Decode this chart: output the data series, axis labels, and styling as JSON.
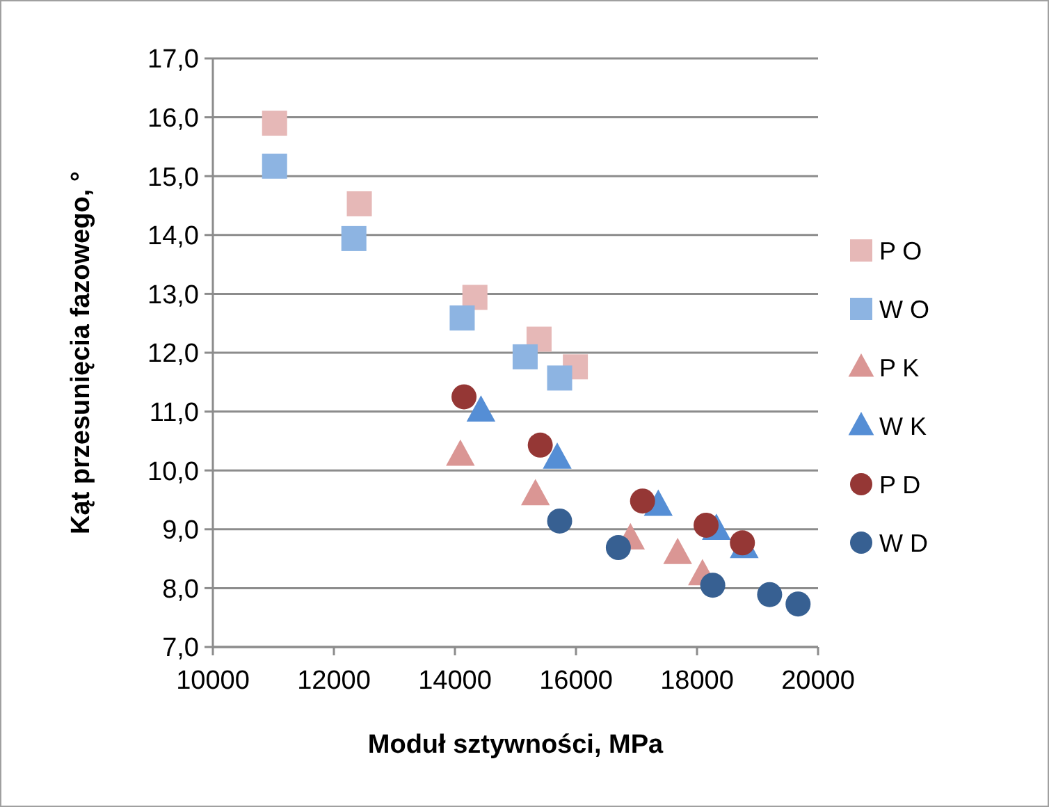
{
  "chart_data": {
    "type": "scatter",
    "xlabel": "Moduł sztywności, MPa",
    "ylabel": "Kąt przesunięcia fazowego, °",
    "xlim": [
      10000,
      20000
    ],
    "xticks": [
      10000,
      12000,
      14000,
      16000,
      18000,
      20000
    ],
    "ylim": [
      7,
      17
    ],
    "yticks": [
      {
        "value": 7,
        "label": "7,0"
      },
      {
        "value": 8,
        "label": "8,0"
      },
      {
        "value": 9,
        "label": "9,0"
      },
      {
        "value": 10,
        "label": "10,0"
      },
      {
        "value": 11,
        "label": "11,0"
      },
      {
        "value": 12,
        "label": "12,0"
      },
      {
        "value": 13,
        "label": "13,0"
      },
      {
        "value": 14,
        "label": "14,0"
      },
      {
        "value": 15,
        "label": "15,0"
      },
      {
        "value": 16,
        "label": "16,0"
      },
      {
        "value": 17,
        "label": "17,0"
      }
    ],
    "grid": "y",
    "legend": "right",
    "series": [
      {
        "name": "P O",
        "color": "#e6b8b7",
        "marker": "square",
        "x": [
          11020,
          12420,
          14330,
          15390,
          15990
        ],
        "values": [
          15.9,
          14.53,
          12.94,
          12.23,
          11.76
        ]
      },
      {
        "name": "W O",
        "color": "#8db4e2",
        "marker": "square",
        "x": [
          11020,
          12330,
          14120,
          15160,
          15730
        ],
        "values": [
          15.17,
          13.94,
          12.59,
          11.93,
          11.57
        ]
      },
      {
        "name": "P K",
        "color": "#da9694",
        "marker": "triangle",
        "x": [
          14090,
          15330,
          16900,
          17680,
          18090
        ],
        "values": [
          10.26,
          9.59,
          8.84,
          8.59,
          8.23
        ]
      },
      {
        "name": "W K",
        "color": "#558ed5",
        "marker": "triangle",
        "x": [
          14430,
          15690,
          17360,
          18320,
          18780
        ],
        "values": [
          11.01,
          10.21,
          9.41,
          9.0,
          8.69
        ]
      },
      {
        "name": "P D",
        "color": "#953735",
        "marker": "circle",
        "x": [
          14150,
          15410,
          17100,
          18150,
          18750
        ],
        "values": [
          11.25,
          10.43,
          9.48,
          9.07,
          8.77
        ]
      },
      {
        "name": "W D",
        "color": "#376092",
        "marker": "circle",
        "x": [
          15730,
          16700,
          18260,
          19200,
          19670
        ],
        "values": [
          9.14,
          8.69,
          8.05,
          7.89,
          7.73
        ]
      }
    ]
  }
}
